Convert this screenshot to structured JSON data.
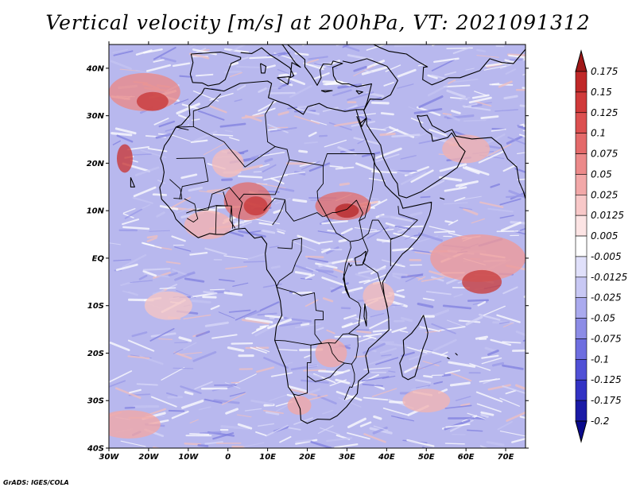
{
  "title": "Vertical velocity [m/s] at 200hPa, VT: 2021091312",
  "credit": "GrADS: IGES/COLA",
  "map": {
    "lon_range": [
      -30,
      75
    ],
    "lat_range": [
      -40,
      45
    ],
    "lon_ticks": [
      {
        "value": -30,
        "label": "30W"
      },
      {
        "value": -20,
        "label": "20W"
      },
      {
        "value": -10,
        "label": "10W"
      },
      {
        "value": 0,
        "label": "0"
      },
      {
        "value": 10,
        "label": "10E"
      },
      {
        "value": 20,
        "label": "20E"
      },
      {
        "value": 30,
        "label": "30E"
      },
      {
        "value": 40,
        "label": "40E"
      },
      {
        "value": 50,
        "label": "50E"
      },
      {
        "value": 60,
        "label": "60E"
      },
      {
        "value": 70,
        "label": "70E"
      }
    ],
    "lat_ticks": [
      {
        "value": 40,
        "label": "40N"
      },
      {
        "value": 30,
        "label": "30N"
      },
      {
        "value": 20,
        "label": "20N"
      },
      {
        "value": 10,
        "label": "10N"
      },
      {
        "value": 0,
        "label": "EQ"
      },
      {
        "value": -10,
        "label": "10S"
      },
      {
        "value": -20,
        "label": "20S"
      },
      {
        "value": -30,
        "label": "30S"
      },
      {
        "value": -40,
        "label": "40S"
      }
    ]
  },
  "colorbar": {
    "levels": [
      "0.175",
      "0.15",
      "0.125",
      "0.1",
      "0.075",
      "0.05",
      "0.025",
      "0.0125",
      "0.005",
      "-0.005",
      "-0.0125",
      "-0.025",
      "-0.05",
      "-0.075",
      "-0.1",
      "-0.125",
      "-0.175",
      "-0.2"
    ],
    "colors": [
      "#a01818",
      "#c02828",
      "#d03a3a",
      "#dc5050",
      "#e46a6a",
      "#ec8a8a",
      "#f2a8a8",
      "#f8c8c8",
      "#fce4e4",
      "#ffffff",
      "#e0e0fa",
      "#c8c8f4",
      "#aaaaee",
      "#8c8ce6",
      "#6e6ee0",
      "#5050d6",
      "#3232c4",
      "#1a1aa6",
      "#0a0a8c"
    ]
  },
  "colors": {
    "background": "#b8b8ee",
    "land_outline": "#000000"
  }
}
